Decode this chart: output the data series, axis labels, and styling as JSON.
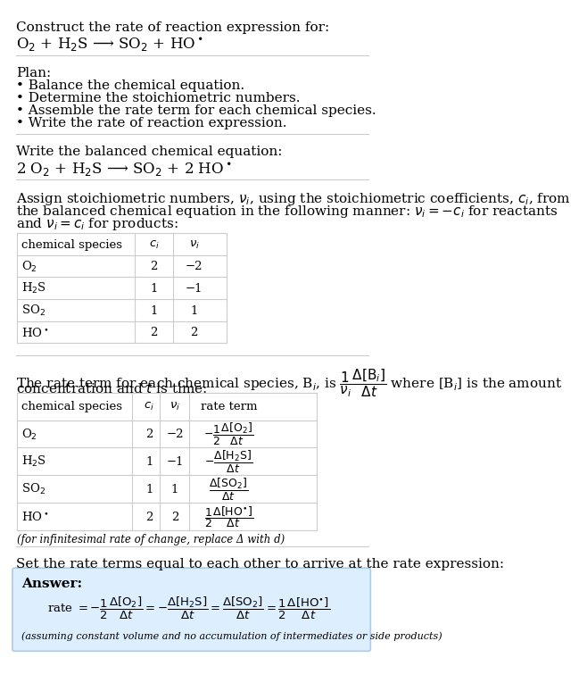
{
  "title_line1": "Construct the rate of reaction expression for:",
  "title_line2": "O$_2$ + H$_2$S ⟶ SO$_2$ + HO$^\\bullet$",
  "plan_header": "Plan:",
  "plan_items": [
    "• Balance the chemical equation.",
    "• Determine the stoichiometric numbers.",
    "• Assemble the rate term for each chemical species.",
    "• Write the rate of reaction expression."
  ],
  "balanced_header": "Write the balanced chemical equation:",
  "balanced_eq": "2 O$_2$ + H$_2$S ⟶ SO$_2$ + 2 HO$^\\bullet$",
  "stoich_intro_lines": [
    "Assign stoichiometric numbers, $\\nu_i$, using the stoichiometric coefficients, $c_i$, from",
    "the balanced chemical equation in the following manner: $\\nu_i = -c_i$ for reactants",
    "and $\\nu_i = c_i$ for products:"
  ],
  "table1_headers": [
    "chemical species",
    "$c_i$",
    "$\\nu_i$"
  ],
  "table1_rows": [
    [
      "O$_2$",
      "2",
      "−2"
    ],
    [
      "H$_2$S",
      "1",
      "−1"
    ],
    [
      "SO$_2$",
      "1",
      "1"
    ],
    [
      "HO$^\\bullet$",
      "2",
      "2"
    ]
  ],
  "rate_intro1": "The rate term for each chemical species, B$_i$, is $\\dfrac{1}{\\nu_i}\\dfrac{\\Delta[\\mathrm{B}_i]}{\\Delta t}$ where [B$_i$] is the amount",
  "rate_intro2": "concentration and $t$ is time:",
  "table2_headers": [
    "chemical species",
    "$c_i$",
    "$\\nu_i$",
    "rate term"
  ],
  "table2_rows": [
    [
      "O$_2$",
      "2",
      "−2",
      "$-\\dfrac{1}{2}\\dfrac{\\Delta[\\mathrm{O_2}]}{\\Delta t}$"
    ],
    [
      "H$_2$S",
      "1",
      "−1",
      "$-\\dfrac{\\Delta[\\mathrm{H_2S}]}{\\Delta t}$"
    ],
    [
      "SO$_2$",
      "1",
      "1",
      "$\\dfrac{\\Delta[\\mathrm{SO_2}]}{\\Delta t}$"
    ],
    [
      "HO$^\\bullet$",
      "2",
      "2",
      "$\\dfrac{1}{2}\\dfrac{\\Delta[\\mathrm{HO^{\\bullet}}]}{\\Delta t}$"
    ]
  ],
  "infinitesimal_note": "(for infinitesimal rate of change, replace Δ with d)",
  "final_header": "Set the rate terms equal to each other to arrive at the rate expression:",
  "answer_label": "Answer:",
  "answer_box_color": "#ddeeff",
  "answer_border_color": "#aaccee",
  "bg_color": "#ffffff",
  "text_color": "#000000",
  "table_border_color": "#cccccc",
  "main_fontsize": 11,
  "small_fontsize": 9.5
}
